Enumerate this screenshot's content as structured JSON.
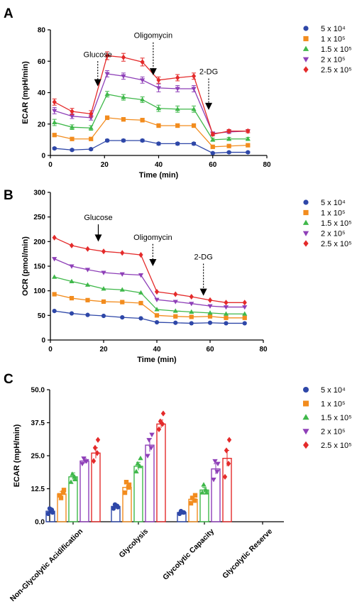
{
  "legend_labels": [
    "5 x 10⁴",
    "1 x 10⁵",
    "1.5 x 10⁵",
    "2 x 10⁵",
    "2.5 x 10⁵"
  ],
  "series_colors": [
    "#2e47a8",
    "#f28c1e",
    "#3fb84a",
    "#8e3fb8",
    "#e42a2a"
  ],
  "markers": [
    "circle",
    "square",
    "triangle",
    "triangle-down",
    "diamond"
  ],
  "chart_data": [
    {
      "panel": "A",
      "type": "line",
      "xlabel": "Time (min)",
      "ylabel": "ECAR (mpH/min)",
      "xlim": [
        0,
        80
      ],
      "ylim": [
        0,
        80
      ],
      "xticks": [
        0,
        20,
        40,
        60,
        80
      ],
      "yticks": [
        0,
        20,
        40,
        60,
        80
      ],
      "x": [
        1.5,
        8,
        15,
        21,
        27,
        34,
        40,
        47,
        53,
        60,
        66,
        73
      ],
      "series": [
        {
          "name": "5 x 10⁴",
          "values": [
            4.5,
            3.5,
            4,
            9.5,
            9.5,
            9.5,
            7.5,
            7.5,
            7.5,
            1.5,
            2,
            2
          ],
          "error": [
            0.6,
            0.6,
            0.6,
            0.8,
            0.8,
            0.8,
            0.8,
            0.8,
            0.8,
            0.5,
            0.5,
            0.5
          ]
        },
        {
          "name": "1 x 10⁵",
          "values": [
            13,
            10.5,
            10.5,
            24,
            23,
            22.5,
            19,
            19,
            19,
            5.5,
            6,
            6.5
          ],
          "error": [
            1,
            1,
            1,
            1.2,
            1.2,
            1.2,
            1.2,
            1.2,
            1.2,
            0.6,
            0.6,
            0.6
          ]
        },
        {
          "name": "1.5 x 10⁵",
          "values": [
            21,
            18,
            17.5,
            39,
            37,
            35.5,
            30,
            29.5,
            29.5,
            10,
            10.5,
            10.5
          ],
          "error": [
            2,
            1.5,
            1.5,
            1.8,
            1.8,
            1.8,
            2,
            2,
            2,
            1,
            1,
            1
          ]
        },
        {
          "name": "2 x 10⁵",
          "values": [
            28.5,
            25,
            24,
            52,
            50.5,
            48,
            43,
            42.5,
            42.5,
            14,
            15,
            15.5
          ],
          "error": [
            2,
            1.5,
            1.5,
            2,
            2,
            2,
            2.5,
            2,
            2,
            1,
            1,
            1
          ]
        },
        {
          "name": "2.5 x 10⁵",
          "values": [
            34,
            28,
            26.5,
            63.5,
            62.5,
            59.5,
            48,
            49.5,
            50.5,
            13.5,
            15.5,
            15.5
          ],
          "error": [
            2,
            2,
            2,
            2.5,
            2.5,
            2.5,
            2,
            2,
            2,
            1,
            1,
            1
          ]
        }
      ],
      "annotations": [
        {
          "label": "Glucose",
          "x": 17.5,
          "from": 60,
          "to": 44
        },
        {
          "label": "Oligomycin",
          "x": 38,
          "from": 72,
          "to": 51
        },
        {
          "label": "2-DG",
          "x": 58.5,
          "from": 49,
          "to": 29
        }
      ]
    },
    {
      "panel": "B",
      "type": "line",
      "xlabel": "Time (min)",
      "ylabel": "OCR (pmol/min)",
      "xlim": [
        0,
        80
      ],
      "ylim": [
        0,
        300
      ],
      "xticks": [
        0,
        20,
        40,
        60,
        80
      ],
      "yticks": [
        0,
        50,
        100,
        150,
        200,
        250,
        300
      ],
      "x": [
        1.5,
        8,
        14,
        20,
        27,
        34,
        40,
        47,
        53,
        60,
        66,
        73
      ],
      "series": [
        {
          "name": "5 x 10⁴",
          "values": [
            59,
            54,
            51,
            49,
            46,
            44,
            36,
            35,
            34,
            35,
            34,
            34
          ]
        },
        {
          "name": "1 x 10⁵",
          "values": [
            93,
            85,
            81,
            78,
            77,
            75,
            50,
            48,
            47,
            48,
            45,
            45
          ]
        },
        {
          "name": "1.5 x 10⁵",
          "values": [
            128,
            119,
            112,
            104,
            102,
            96,
            62,
            59,
            57,
            55,
            53,
            53
          ]
        },
        {
          "name": "2 x 10⁵",
          "values": [
            165,
            150,
            143,
            137,
            134,
            132,
            82,
            78,
            74,
            69,
            67,
            67
          ]
        },
        {
          "name": "2.5 x 10⁵",
          "values": [
            208,
            192,
            185,
            180,
            177,
            173,
            98,
            93,
            88,
            81,
            76,
            76
          ]
        }
      ],
      "annotations": [
        {
          "label": "Glucose",
          "x": 18,
          "from": 235,
          "to": 200,
          "style": "solid"
        },
        {
          "label": "Oligomycin",
          "x": 38.5,
          "from": 195,
          "to": 150,
          "style": "dotted"
        },
        {
          "label": "2-DG",
          "x": 57.5,
          "from": 155,
          "to": 90,
          "style": "dotted"
        }
      ]
    },
    {
      "panel": "C",
      "type": "bar",
      "ylabel": "ECAR (mpH/min)",
      "ylim": [
        0,
        50
      ],
      "yticks": [
        "0.0",
        "12.5",
        "25.0",
        "37.5",
        "50.0"
      ],
      "categories": [
        "Non-Glycolytic Acidification",
        "Glycolysis",
        "Glycolytic Capacity",
        "Glycolytic Reserve"
      ],
      "series": [
        {
          "name": "5 x 10⁴",
          "values": [
            4,
            5.8,
            3.5,
            null
          ],
          "error": [
            0.5,
            0.4,
            0.3,
            null
          ]
        },
        {
          "name": "1 x 10⁵",
          "values": [
            10.5,
            13,
            8.5,
            null
          ],
          "error": [
            1,
            1.5,
            1,
            null
          ]
        },
        {
          "name": "1.5 x 10⁵",
          "values": [
            17,
            21,
            12,
            null
          ],
          "error": [
            1.5,
            1.5,
            1,
            null
          ]
        },
        {
          "name": "2 x 10⁵",
          "values": [
            23,
            29,
            20,
            null
          ],
          "error": [
            1,
            2.5,
            2,
            null
          ]
        },
        {
          "name": "2.5 x 10⁵",
          "values": [
            26,
            37,
            24,
            null
          ],
          "error": [
            2,
            1.5,
            3,
            null
          ]
        }
      ],
      "points": [
        [
          [
            3,
            4.5,
            5,
            3.5
          ],
          [
            10,
            11,
            9,
            12
          ],
          [
            15,
            17,
            18,
            16
          ],
          [
            22,
            23,
            24,
            23
          ],
          [
            23,
            26,
            28,
            31
          ]
        ],
        [
          [
            5,
            6,
            6.5,
            5.5
          ],
          [
            11,
            13,
            15,
            14
          ],
          [
            19,
            21,
            22,
            24
          ],
          [
            25,
            28,
            31,
            33
          ],
          [
            35,
            37,
            38,
            41
          ]
        ],
        [
          [
            3,
            3.5,
            4,
            3.5
          ],
          [
            7,
            8,
            9,
            10
          ],
          [
            11,
            12,
            14,
            11
          ],
          [
            16,
            19,
            23,
            22
          ],
          [
            17,
            22,
            27,
            31
          ]
        ],
        [
          [],
          [],
          [],
          [],
          []
        ]
      ]
    }
  ]
}
